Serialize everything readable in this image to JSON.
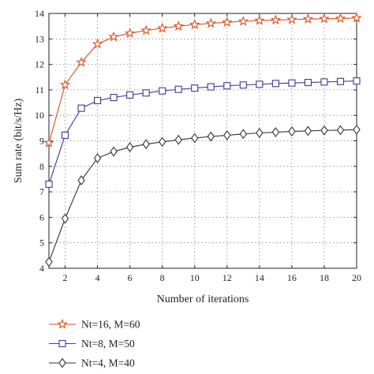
{
  "chart_data": {
    "type": "line",
    "xlabel": "Number of iterations",
    "ylabel": "Sum rate (bit/s/Hz)",
    "xlim": [
      1,
      20
    ],
    "ylim": [
      4,
      14
    ],
    "xticks": [
      2,
      4,
      6,
      8,
      10,
      12,
      14,
      16,
      18,
      20
    ],
    "yticks": [
      4,
      5,
      6,
      7,
      8,
      9,
      10,
      11,
      12,
      13,
      14
    ],
    "grid": true,
    "legend_position": "bottom-left, below plot",
    "x": [
      1,
      2,
      3,
      4,
      5,
      6,
      7,
      8,
      9,
      10,
      11,
      12,
      13,
      14,
      15,
      16,
      17,
      18,
      19,
      20
    ],
    "series": [
      {
        "name": "Nt=16, M=60",
        "color": "#d9501e",
        "marker": "star",
        "values": [
          8.92,
          11.2,
          12.08,
          12.8,
          13.08,
          13.22,
          13.33,
          13.42,
          13.5,
          13.56,
          13.61,
          13.65,
          13.69,
          13.72,
          13.74,
          13.76,
          13.78,
          13.79,
          13.8,
          13.82
        ]
      },
      {
        "name": "Nt=8, M=50",
        "color": "#3d3a96",
        "marker": "square",
        "values": [
          7.3,
          9.22,
          10.28,
          10.58,
          10.7,
          10.8,
          10.88,
          10.96,
          11.02,
          11.07,
          11.12,
          11.16,
          11.19,
          11.22,
          11.25,
          11.27,
          11.29,
          11.31,
          11.33,
          11.35
        ]
      },
      {
        "name": "Nt=4, M=40",
        "color": "#333333",
        "marker": "diamond",
        "values": [
          4.25,
          5.95,
          7.45,
          8.32,
          8.58,
          8.75,
          8.87,
          8.96,
          9.04,
          9.11,
          9.17,
          9.22,
          9.27,
          9.31,
          9.34,
          9.37,
          9.39,
          9.41,
          9.42,
          9.44
        ]
      }
    ]
  }
}
